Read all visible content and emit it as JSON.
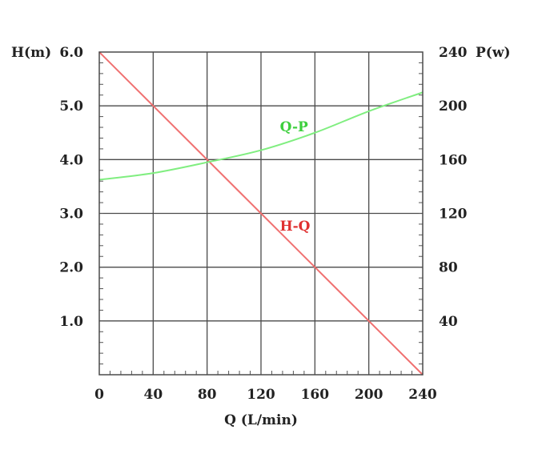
{
  "chart_data": {
    "type": "line",
    "xlabel": "Q (L/min)",
    "ylabel_left": "H(m)",
    "ylabel_right": "P(w)",
    "x_ticks": [
      "0",
      "40",
      "80",
      "120",
      "160",
      "200",
      "240"
    ],
    "x_tick_values": [
      0,
      40,
      80,
      120,
      160,
      200,
      240
    ],
    "y_left_ticks": [
      "1.0",
      "2.0",
      "3.0",
      "4.0",
      "5.0",
      "6.0"
    ],
    "y_left_tick_values": [
      1,
      2,
      3,
      4,
      5,
      6
    ],
    "y_right_ticks": [
      "40",
      "80",
      "120",
      "160",
      "200",
      "240"
    ],
    "y_right_tick_values": [
      40,
      80,
      120,
      160,
      200,
      240
    ],
    "xlim": [
      0,
      240
    ],
    "ylim_left": [
      0,
      6
    ],
    "ylim_right": [
      0,
      240
    ],
    "grid": true,
    "series": [
      {
        "name": "H-Q",
        "axis": "left",
        "color": "#f07070",
        "x": [
          0,
          40,
          80,
          120,
          160,
          200,
          240
        ],
        "y": [
          6.0,
          5.0,
          4.0,
          3.0,
          2.0,
          1.0,
          0.0
        ]
      },
      {
        "name": "Q-P",
        "axis": "right",
        "color": "#80ee80",
        "x": [
          0,
          40,
          80,
          120,
          160,
          200,
          240
        ],
        "y": [
          145,
          150,
          158,
          167,
          180,
          196,
          210
        ]
      }
    ]
  }
}
